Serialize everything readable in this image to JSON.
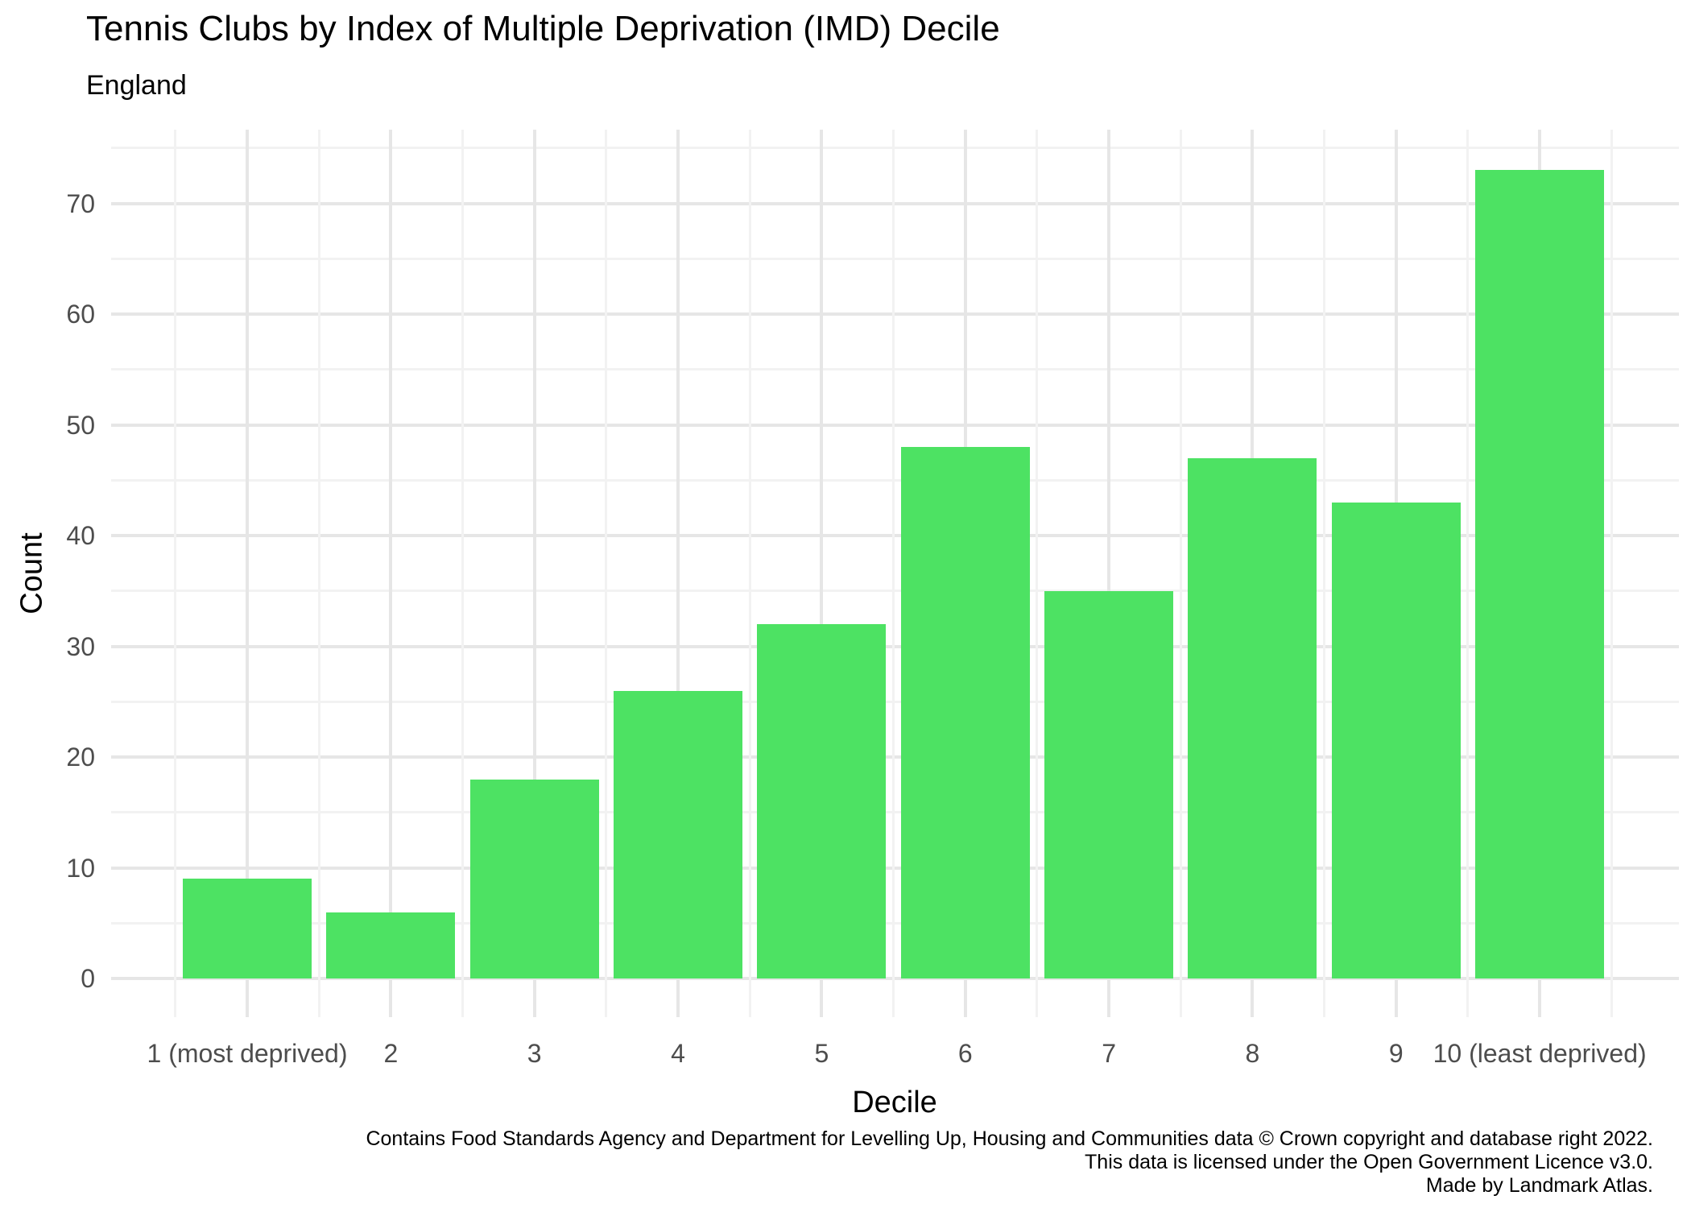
{
  "chart_data": {
    "type": "bar",
    "title": "Tennis Clubs by Index of Multiple Deprivation (IMD) Decile",
    "subtitle": "England",
    "xlabel": "Decile",
    "ylabel": "Count",
    "categories": [
      "1 (most deprived)",
      "2",
      "3",
      "4",
      "5",
      "6",
      "7",
      "8",
      "9",
      "10 (least deprived)"
    ],
    "values": [
      9,
      6,
      18,
      26,
      32,
      48,
      35,
      47,
      43,
      73
    ],
    "yticks": [
      0,
      10,
      20,
      30,
      40,
      50,
      60,
      70
    ],
    "ylim": [
      0,
      73
    ],
    "grid": "major and minor, light gray on white",
    "legend_position": "none",
    "bar_color": "#4de263",
    "grid_major_color": "#e6e6e6",
    "grid_minor_color": "#f2f2f2",
    "tick_label_color": "#4d4d4d",
    "text_color": "#000000",
    "caption_lines": [
      "Contains Food Standards Agency and Department for Levelling Up, Housing and Communities data © Crown copyright and database right 2022.",
      "This data is licensed under the Open Government Licence v3.0.",
      "Made by Landmark Atlas."
    ]
  }
}
